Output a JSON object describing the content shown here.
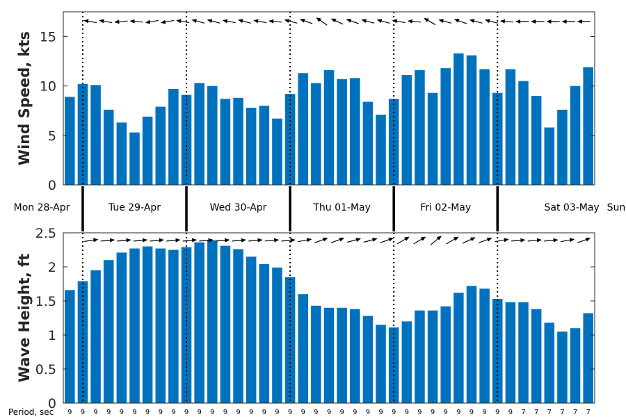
{
  "colors": {
    "bar": "#0072bd",
    "axis": "#262626",
    "arrow": "#000000"
  },
  "period_label": "Period, sec",
  "chart_data": [
    {
      "type": "bar",
      "title": "",
      "ylabel": "Wind Speed, kts",
      "ylim": [
        0,
        17.5
      ],
      "yticks": [
        0,
        5,
        10,
        15
      ],
      "ytick_labels": [
        "0",
        "5",
        "10",
        "15"
      ],
      "values": [
        8.9,
        10.2,
        10.1,
        7.6,
        6.3,
        5.3,
        6.9,
        7.9,
        9.7,
        9.1,
        10.3,
        10.0,
        8.7,
        8.8,
        7.8,
        8.0,
        6.7,
        9.2,
        11.3,
        10.3,
        11.6,
        10.7,
        10.8,
        8.4,
        7.1,
        8.7,
        11.1,
        11.6,
        9.3,
        11.8,
        13.3,
        13.1,
        11.7,
        9.3,
        11.7,
        10.5,
        9.0,
        5.8,
        7.6,
        10.0,
        11.9
      ],
      "direction_arrows_deg": [
        190,
        190,
        175,
        185,
        170,
        170,
        190,
        195,
        195,
        190,
        195,
        190,
        185,
        195,
        200,
        215,
        205,
        200,
        195,
        195,
        190,
        185,
        210,
        195,
        200,
        195,
        195,
        185,
        180,
        180,
        180,
        180,
        180
      ]
    },
    {
      "type": "bar",
      "title": "",
      "ylabel": "Wave Height, ft",
      "ylim": [
        0,
        2.5
      ],
      "yticks": [
        0,
        0.5,
        1,
        1.5,
        2,
        2.5
      ],
      "ytick_labels": [
        "0",
        "0.5",
        "1",
        "1.5",
        "2",
        "2.5"
      ],
      "values": [
        1.66,
        1.79,
        1.95,
        2.1,
        2.21,
        2.27,
        2.3,
        2.27,
        2.25,
        2.29,
        2.36,
        2.39,
        2.31,
        2.26,
        2.15,
        2.04,
        1.99,
        1.85,
        1.6,
        1.43,
        1.4,
        1.4,
        1.38,
        1.28,
        1.15,
        1.11,
        1.2,
        1.36,
        1.36,
        1.42,
        1.62,
        1.72,
        1.68,
        1.53,
        1.48,
        1.48,
        1.38,
        1.18,
        1.05,
        1.1,
        1.32
      ],
      "direction_arrows_deg": [
        -8,
        -5,
        -5,
        -5,
        -5,
        -5,
        -5,
        -5,
        -5,
        -5,
        -5,
        -5,
        -5,
        -10,
        -20,
        -20,
        -15,
        -15,
        -20,
        -30,
        -30,
        -40,
        -30,
        -25,
        -20,
        -10,
        -5,
        -5,
        -5,
        -10,
        -20
      ]
    }
  ],
  "days": [
    {
      "label": "Mon 28-Apr"
    },
    {
      "label": "Tue 29-Apr"
    },
    {
      "label": "Wed 30-Apr"
    },
    {
      "label": "Thu 01-May"
    },
    {
      "label": "Fri 02-May"
    },
    {
      "label": "Sat 03-May"
    },
    {
      "label": "Sun"
    }
  ],
  "periods": [
    "9",
    "9",
    "9",
    "9",
    "9",
    "9",
    "9",
    "9",
    "9",
    "9",
    "9",
    "9",
    "9",
    "9",
    "9",
    "9",
    "9",
    "9",
    "9",
    "9",
    "9",
    "9",
    "9",
    "9",
    "9",
    "9",
    "9",
    "9",
    "9",
    "9",
    "9",
    "9",
    "9",
    "9",
    "9",
    "7",
    "7",
    "7",
    "7",
    "7",
    "7"
  ]
}
